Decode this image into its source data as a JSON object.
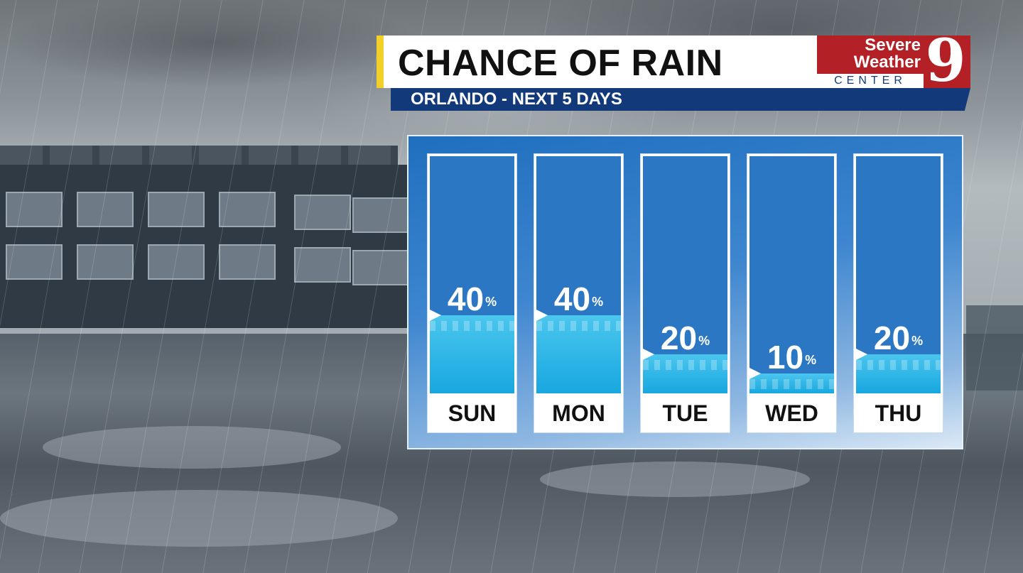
{
  "header": {
    "title": "CHANCE OF RAIN",
    "subtitle": "ORLANDO - NEXT 5 DAYS"
  },
  "logo": {
    "line1": "Severe",
    "line2": "Weather",
    "line3": "CENTER",
    "number": "9"
  },
  "colors": {
    "title_accent": "#f3cf2a",
    "subtitle_bar": "#123a7a",
    "logo_red": "#b32025",
    "panel_blue": "#2b77c3",
    "water": "#18a7df"
  },
  "chart_data": {
    "type": "bar",
    "categories": [
      "SUN",
      "MON",
      "TUE",
      "WED",
      "THU"
    ],
    "values": [
      40,
      40,
      20,
      10,
      20
    ],
    "value_labels": [
      "40",
      "40",
      "20",
      "10",
      "20"
    ],
    "unit": "%",
    "ylim": [
      0,
      100
    ]
  }
}
